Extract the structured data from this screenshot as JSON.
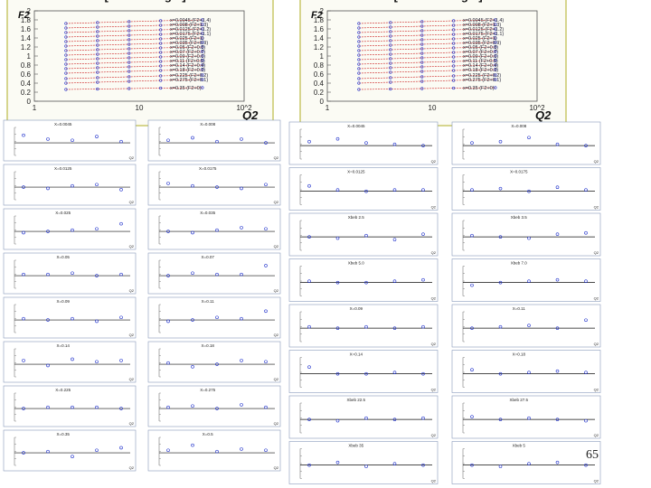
{
  "page_number": "65",
  "colors": {
    "frame": "#c9c86a",
    "marker": "#2233cc",
    "curve": "#cc2222",
    "panel_border": "#8899bb"
  },
  "chart_data": [
    {
      "type": "scatter",
      "title": "NMC [Proton target]",
      "xlabel": "Q2",
      "ylabel": "F2",
      "xscale": "log",
      "xlim": [
        1,
        100
      ],
      "ylim": [
        0,
        2
      ],
      "x_ticks": [
        "1",
        "10",
        "10^2"
      ],
      "y_ticks": [
        "0",
        "0.2",
        "0.4",
        "0.6",
        "0.8",
        "1",
        "1.2",
        "1.4",
        "1.6",
        "1.8",
        "2"
      ],
      "legend_entries": [
        "x=0.0045 (F2+1.4)",
        "x=0.008 (F2+1.3)",
        "x=0.0125 (F2+1.2)",
        "x=0.0175 (F2+1.1)",
        "x=0.025 (F2+1)",
        "x=0.035 (F2+0.9)",
        "x=0.05 (F2+0.8)",
        "x=0.07 (F2+0.7)",
        "x=0.09 (F2+0.6)",
        "x=0.11 (F2+0.5)",
        "x=0.14 (F2+0.4)",
        "x=0.18 (F2+0.3)",
        "x=0.225 (F2+0.2)",
        "x=0.275 (F2+0.1)",
        "x=0.35 (F2+0)"
      ],
      "series_values": [
        [
          1.72,
          1.74,
          1.76,
          1.78,
          1.8
        ],
        [
          1.62,
          1.64,
          1.66,
          1.68,
          1.7
        ],
        [
          1.52,
          1.54,
          1.56,
          1.58,
          1.6
        ],
        [
          1.42,
          1.44,
          1.46,
          1.48,
          1.5
        ],
        [
          1.32,
          1.34,
          1.36,
          1.38,
          1.4
        ],
        [
          1.22,
          1.24,
          1.26,
          1.28,
          1.3
        ],
        [
          1.12,
          1.14,
          1.16,
          1.18,
          1.2
        ],
        [
          1.02,
          1.04,
          1.06,
          1.08,
          1.1
        ],
        [
          0.92,
          0.94,
          0.96,
          0.98,
          1.0
        ],
        [
          0.82,
          0.84,
          0.86,
          0.88,
          0.9
        ],
        [
          0.72,
          0.74,
          0.76,
          0.78,
          0.8
        ],
        [
          0.62,
          0.64,
          0.66,
          0.68,
          0.7
        ],
        [
          0.5,
          0.52,
          0.54,
          0.56,
          0.58
        ],
        [
          0.4,
          0.42,
          0.44,
          0.46,
          0.48
        ],
        [
          0.26,
          0.27,
          0.28,
          0.29,
          0.3
        ]
      ],
      "x_values": [
        2,
        4,
        8,
        16,
        40
      ]
    },
    {
      "type": "scatter",
      "title": "NMC [Deutron target]",
      "xlabel": "Q2",
      "ylabel": "F2",
      "xscale": "log",
      "xlim": [
        1,
        100
      ],
      "ylim": [
        0,
        2
      ],
      "x_ticks": [
        "1",
        "10",
        "10^2"
      ],
      "y_ticks": [
        "0",
        "0.2",
        "0.4",
        "0.6",
        "0.8",
        "1",
        "1.2",
        "1.4",
        "1.6",
        "1.8",
        "2"
      ],
      "legend_entries": [
        "x=0.0045 (F2+1.4)",
        "x=0.008 (F2+1.3)",
        "x=0.0125 (F2+1.2)",
        "x=0.0175 (F2+1.1)",
        "x=0.025 (F2+1)",
        "x=0.035 (F2+0.9)",
        "x=0.05 (F2+0.8)",
        "x=0.07 (F2+0.7)",
        "x=0.09 (F2+0.6)",
        "x=0.11 (F2+0.5)",
        "x=0.14 (F2+0.4)",
        "x=0.18 (F2+0.3)",
        "x=0.225 (F2+0.2)",
        "x=0.275 (F2+0.1)",
        "x=0.35 (F2+0)"
      ],
      "series_values": [
        [
          1.72,
          1.74,
          1.76,
          1.78,
          1.8
        ],
        [
          1.62,
          1.64,
          1.66,
          1.68,
          1.7
        ],
        [
          1.52,
          1.54,
          1.56,
          1.58,
          1.6
        ],
        [
          1.42,
          1.44,
          1.46,
          1.48,
          1.5
        ],
        [
          1.32,
          1.34,
          1.36,
          1.38,
          1.4
        ],
        [
          1.22,
          1.24,
          1.26,
          1.28,
          1.3
        ],
        [
          1.12,
          1.14,
          1.16,
          1.18,
          1.2
        ],
        [
          1.02,
          1.04,
          1.06,
          1.08,
          1.1
        ],
        [
          0.92,
          0.94,
          0.96,
          0.98,
          1.0
        ],
        [
          0.82,
          0.84,
          0.86,
          0.88,
          0.9
        ],
        [
          0.72,
          0.74,
          0.76,
          0.78,
          0.8
        ],
        [
          0.62,
          0.64,
          0.66,
          0.68,
          0.7
        ],
        [
          0.5,
          0.52,
          0.54,
          0.56,
          0.58
        ],
        [
          0.4,
          0.42,
          0.44,
          0.46,
          0.48
        ],
        [
          0.26,
          0.27,
          0.28,
          0.29,
          0.3
        ]
      ],
      "x_values": [
        2,
        4,
        8,
        16,
        40
      ]
    },
    {
      "type": "scatter",
      "name": "proton residual panels",
      "xlabel": "Q2",
      "panel_titles": [
        "X=0.0045",
        "X=0.008",
        "X=0.0125",
        "X=0.0175",
        "X=0.025",
        "X=0.035",
        "X=0.05",
        "X=0.07",
        "X=0.09",
        "X=0.11",
        "X=0.14",
        "X=0.18",
        "X=0.225",
        "X=0.275",
        "X=0.35",
        "X=0.5"
      ],
      "panels_y": [
        [
          0.6,
          0.3,
          0.2,
          0.5,
          0.1
        ],
        [
          0.2,
          0.4,
          0.1,
          0.3,
          0.0
        ],
        [
          0.0,
          -0.1,
          0.1,
          0.2,
          -0.2
        ],
        [
          0.3,
          0.1,
          0.0,
          -0.1,
          0.2
        ],
        [
          -0.1,
          0.0,
          0.1,
          0.2,
          0.6
        ],
        [
          0.0,
          -0.1,
          0.1,
          0.3,
          0.2
        ],
        [
          0.1,
          0.1,
          0.2,
          0.0,
          0.1
        ],
        [
          0.0,
          0.2,
          0.1,
          0.1,
          0.8
        ],
        [
          0.1,
          0.0,
          0.1,
          -0.1,
          0.2
        ],
        [
          -0.1,
          0.0,
          0.2,
          0.1,
          0.7
        ],
        [
          0.3,
          -0.1,
          0.4,
          0.2,
          0.3
        ],
        [
          0.1,
          -0.2,
          0.0,
          0.3,
          0.2
        ],
        [
          0.0,
          0.1,
          0.1,
          0.1,
          0.0
        ],
        [
          0.1,
          0.2,
          0.0,
          0.3,
          0.1
        ],
        [
          0.0,
          0.1,
          -0.3,
          0.2,
          0.4
        ],
        [
          0.2,
          0.6,
          0.1,
          0.3,
          0.2
        ]
      ]
    },
    {
      "type": "scatter",
      "name": "deuteron residual panels",
      "xlabel": "Q2",
      "panel_titles": [
        "X=0.0045",
        "X=0.008",
        "X=0.0125",
        "X=0.0175",
        "Xbeb 2.5",
        "Xbeb 3.5",
        "Xbeb 5.0",
        "Xbeb 7.0",
        "X=0.09",
        "X=0.11",
        "X=0.14",
        "X=0.18",
        "Xbeb 22.5",
        "Xbeb 27.5",
        "Xbeb 35",
        "Xbeb 5"
      ],
      "panels_y": [
        [
          0.3,
          0.5,
          0.2,
          0.1,
          0.0
        ],
        [
          0.2,
          0.3,
          0.6,
          0.1,
          0.0
        ],
        [
          0.4,
          0.1,
          0.0,
          0.1,
          0.1
        ],
        [
          0.1,
          0.2,
          0.0,
          0.3,
          0.1
        ],
        [
          0.0,
          -0.1,
          0.1,
          -0.2,
          0.2
        ],
        [
          0.1,
          0.0,
          -0.1,
          0.2,
          0.3
        ],
        [
          0.1,
          0.0,
          0.0,
          0.1,
          0.2
        ],
        [
          -0.2,
          0.0,
          0.1,
          0.2,
          0.1
        ],
        [
          0.1,
          0.0,
          0.1,
          0.0,
          0.1
        ],
        [
          0.0,
          0.1,
          0.2,
          0.0,
          0.6
        ],
        [
          0.5,
          0.0,
          0.0,
          0.1,
          0.0
        ],
        [
          0.3,
          0.0,
          0.1,
          0.2,
          0.1
        ],
        [
          0.0,
          -0.1,
          0.1,
          0.0,
          0.1
        ],
        [
          0.2,
          0.0,
          0.1,
          0.0,
          -0.1
        ],
        [
          0.0,
          0.2,
          -0.1,
          0.1,
          0.0
        ],
        [
          0.0,
          -0.1,
          0.1,
          0.2,
          0.0
        ]
      ]
    }
  ]
}
